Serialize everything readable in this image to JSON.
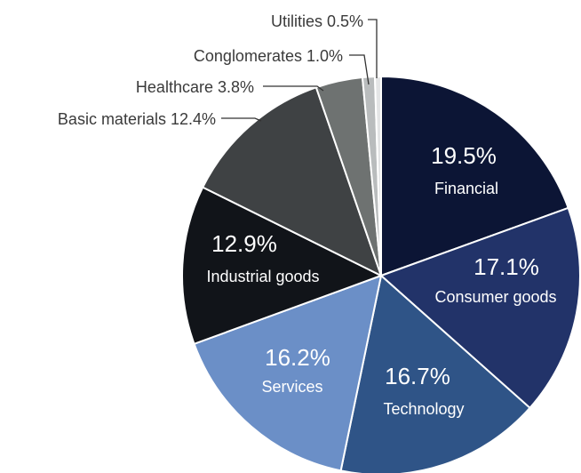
{
  "chart_data": {
    "type": "pie",
    "title": "",
    "start_angle_deg": 0,
    "direction": "clockwise",
    "slices": [
      {
        "label": "Financial",
        "value": 19.5,
        "pct_text": "19.5%",
        "color": "#0c1535",
        "label_style": "inside"
      },
      {
        "label": "Consumer goods",
        "value": 17.1,
        "pct_text": "17.1%",
        "color": "#223369",
        "label_style": "inside"
      },
      {
        "label": "Technology",
        "value": 16.7,
        "pct_text": "16.7%",
        "color": "#2f5487",
        "label_style": "inside"
      },
      {
        "label": "Services",
        "value": 16.2,
        "pct_text": "16.2%",
        "color": "#6b8fc7",
        "label_style": "inside"
      },
      {
        "label": "Industrial goods",
        "value": 12.9,
        "pct_text": "12.9%",
        "color": "#111419",
        "label_style": "inside"
      },
      {
        "label": "Basic materials",
        "value": 12.4,
        "pct_text": "12.4%",
        "color": "#3f4244",
        "label_style": "outside",
        "outside_text": "Basic materials 12.4%"
      },
      {
        "label": "Healthcare",
        "value": 3.8,
        "pct_text": "3.8%",
        "color": "#6e7271",
        "label_style": "outside",
        "outside_text": "Healthcare 3.8%"
      },
      {
        "label": "Conglomerates",
        "value": 1.0,
        "pct_text": "1.0%",
        "color": "#b9bcbd",
        "label_style": "outside",
        "outside_text": "Conglomerates 1.0%"
      },
      {
        "label": "Utilities",
        "value": 0.5,
        "pct_text": "0.5%",
        "color": "#e4e5e6",
        "label_style": "outside",
        "outside_text": "Utilities 0.5%"
      }
    ]
  }
}
